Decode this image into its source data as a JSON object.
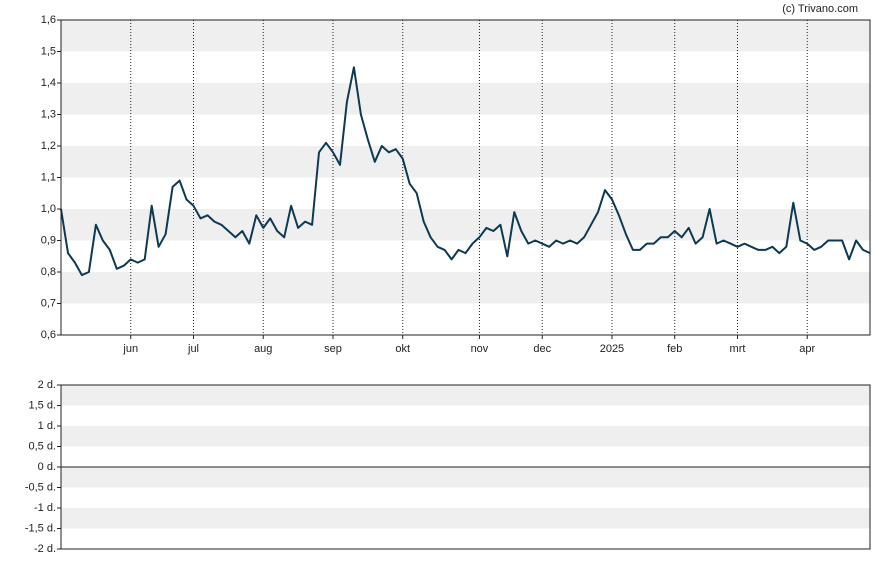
{
  "chart_data": [
    {
      "type": "line",
      "source": "(c) Trivano.com",
      "grid": true,
      "categories": [
        null,
        null,
        null,
        null,
        null,
        null,
        null,
        null,
        null,
        null,
        "jun",
        null,
        null,
        null,
        null,
        null,
        null,
        null,
        null,
        "jul",
        null,
        null,
        null,
        null,
        null,
        null,
        null,
        null,
        null,
        "aug",
        null,
        null,
        null,
        null,
        null,
        null,
        null,
        null,
        null,
        "sep",
        null,
        null,
        null,
        null,
        null,
        null,
        null,
        null,
        null,
        "okt",
        null,
        null,
        null,
        null,
        null,
        null,
        null,
        null,
        null,
        null,
        "nov",
        null,
        null,
        null,
        null,
        null,
        null,
        null,
        null,
        "dec",
        null,
        null,
        null,
        null,
        null,
        null,
        null,
        null,
        null,
        "2025",
        null,
        null,
        null,
        null,
        null,
        null,
        null,
        null,
        "feb",
        null,
        null,
        null,
        null,
        null,
        null,
        null,
        null,
        "mrt",
        null,
        null,
        null,
        null,
        null,
        null,
        null,
        null,
        null,
        "apr",
        null,
        null,
        null,
        null,
        null,
        null,
        null,
        null,
        null
      ],
      "series": [
        {
          "color": "#0d3a52",
          "values": [
            1.0,
            0.86,
            0.83,
            0.79,
            0.8,
            0.95,
            0.9,
            0.87,
            0.81,
            0.82,
            0.84,
            0.83,
            0.84,
            1.01,
            0.88,
            0.92,
            1.07,
            1.09,
            1.03,
            1.01,
            0.97,
            0.98,
            0.96,
            0.95,
            0.93,
            0.91,
            0.93,
            0.89,
            0.98,
            0.94,
            0.97,
            0.93,
            0.91,
            1.01,
            0.94,
            0.96,
            0.95,
            1.18,
            1.21,
            1.18,
            1.14,
            1.34,
            1.45,
            1.3,
            1.22,
            1.15,
            1.2,
            1.18,
            1.19,
            1.16,
            1.08,
            1.05,
            0.96,
            0.91,
            0.88,
            0.87,
            0.84,
            0.87,
            0.86,
            0.89,
            0.91,
            0.94,
            0.93,
            0.95,
            0.85,
            0.99,
            0.93,
            0.89,
            0.9,
            0.89,
            0.88,
            0.9,
            0.89,
            0.9,
            0.89,
            0.91,
            0.95,
            0.99,
            1.06,
            1.03,
            0.98,
            0.92,
            0.87,
            0.87,
            0.89,
            0.89,
            0.91,
            0.91,
            0.93,
            0.91,
            0.94,
            0.89,
            0.91,
            1.0,
            0.89,
            0.9,
            0.89,
            0.88,
            0.89,
            0.88,
            0.87,
            0.87,
            0.88,
            0.86,
            0.88,
            1.02,
            0.9,
            0.89,
            0.87,
            0.88,
            0.9,
            0.9,
            0.9,
            0.84,
            0.9,
            0.87,
            0.86
          ]
        }
      ],
      "ylim": [
        0.6,
        1.6
      ],
      "yticks": [
        {
          "value": 0.6,
          "label": "0,6"
        },
        {
          "value": 0.7,
          "label": "0,7"
        },
        {
          "value": 0.8,
          "label": "0,8"
        },
        {
          "value": 0.9,
          "label": "0,9"
        },
        {
          "value": 1.0,
          "label": "1,0"
        },
        {
          "value": 1.1,
          "label": "1,1"
        },
        {
          "value": 1.2,
          "label": "1,2"
        },
        {
          "value": 1.3,
          "label": "1,3"
        },
        {
          "value": 1.4,
          "label": "1,4"
        },
        {
          "value": 1.5,
          "label": "1,5"
        },
        {
          "value": 1.6,
          "label": "1,6"
        }
      ]
    },
    {
      "type": "line",
      "grid": true,
      "ylim": [
        -2,
        2
      ],
      "yticks": [
        {
          "value": -2,
          "label": "-2 d."
        },
        {
          "value": -1.5,
          "label": "-1,5 d."
        },
        {
          "value": -1,
          "label": "-1 d."
        },
        {
          "value": -0.5,
          "label": "-0,5 d."
        },
        {
          "value": 0,
          "label": "0 d."
        },
        {
          "value": 0.5,
          "label": "0,5 d."
        },
        {
          "value": 1,
          "label": "1 d."
        },
        {
          "value": 1.5,
          "label": "1,5 d."
        },
        {
          "value": 2,
          "label": "2 d."
        }
      ]
    }
  ]
}
